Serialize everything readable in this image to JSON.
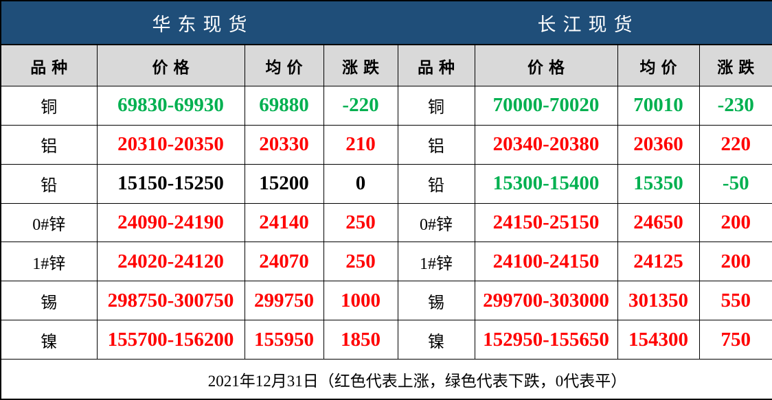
{
  "chart_data": [
    {
      "type": "table",
      "title": "华东现货",
      "columns": [
        "品种",
        "价格",
        "均价",
        "涨跌"
      ],
      "rows": [
        {
          "name": "铜",
          "price": "69830-69930",
          "avg": "69880",
          "change": "-220",
          "trend": "down"
        },
        {
          "name": "铝",
          "price": "20310-20350",
          "avg": "20330",
          "change": "210",
          "trend": "up"
        },
        {
          "name": "铅",
          "price": "15150-15250",
          "avg": "15200",
          "change": "0",
          "trend": "flat"
        },
        {
          "name": "0#锌",
          "price": "24090-24190",
          "avg": "24140",
          "change": "250",
          "trend": "up"
        },
        {
          "name": "1#锌",
          "price": "24020-24120",
          "avg": "24070",
          "change": "250",
          "trend": "up"
        },
        {
          "name": "锡",
          "price": "298750-300750",
          "avg": "299750",
          "change": "1000",
          "trend": "up"
        },
        {
          "name": "镍",
          "price": "155700-156200",
          "avg": "155950",
          "change": "1850",
          "trend": "up"
        }
      ]
    },
    {
      "type": "table",
      "title": "长江现货",
      "columns": [
        "品种",
        "价格",
        "均价",
        "涨跌"
      ],
      "rows": [
        {
          "name": "铜",
          "price": "70000-70020",
          "avg": "70010",
          "change": "-230",
          "trend": "down"
        },
        {
          "name": "铝",
          "price": "20340-20380",
          "avg": "20360",
          "change": "220",
          "trend": "up"
        },
        {
          "name": "铅",
          "price": "15300-15400",
          "avg": "15350",
          "change": "-50",
          "trend": "down"
        },
        {
          "name": "0#锌",
          "price": "24150-25150",
          "avg": "24650",
          "change": "200",
          "trend": "up"
        },
        {
          "name": "1#锌",
          "price": "24100-24150",
          "avg": "24125",
          "change": "200",
          "trend": "up"
        },
        {
          "name": "锡",
          "price": "299700-303000",
          "avg": "301350",
          "change": "550",
          "trend": "up"
        },
        {
          "name": "镍",
          "price": "152950-155650",
          "avg": "154300",
          "change": "750",
          "trend": "up"
        }
      ]
    }
  ],
  "footer": {
    "note": "2021年12月31日（红色代表上涨，绿色代表下跌，0代表平）"
  },
  "colors": {
    "up": "#ff0000",
    "down": "#00b050",
    "flat": "#000000",
    "header_bg": "#1f4e79",
    "subheader_bg": "#d9d9d9",
    "border": "#000000"
  }
}
